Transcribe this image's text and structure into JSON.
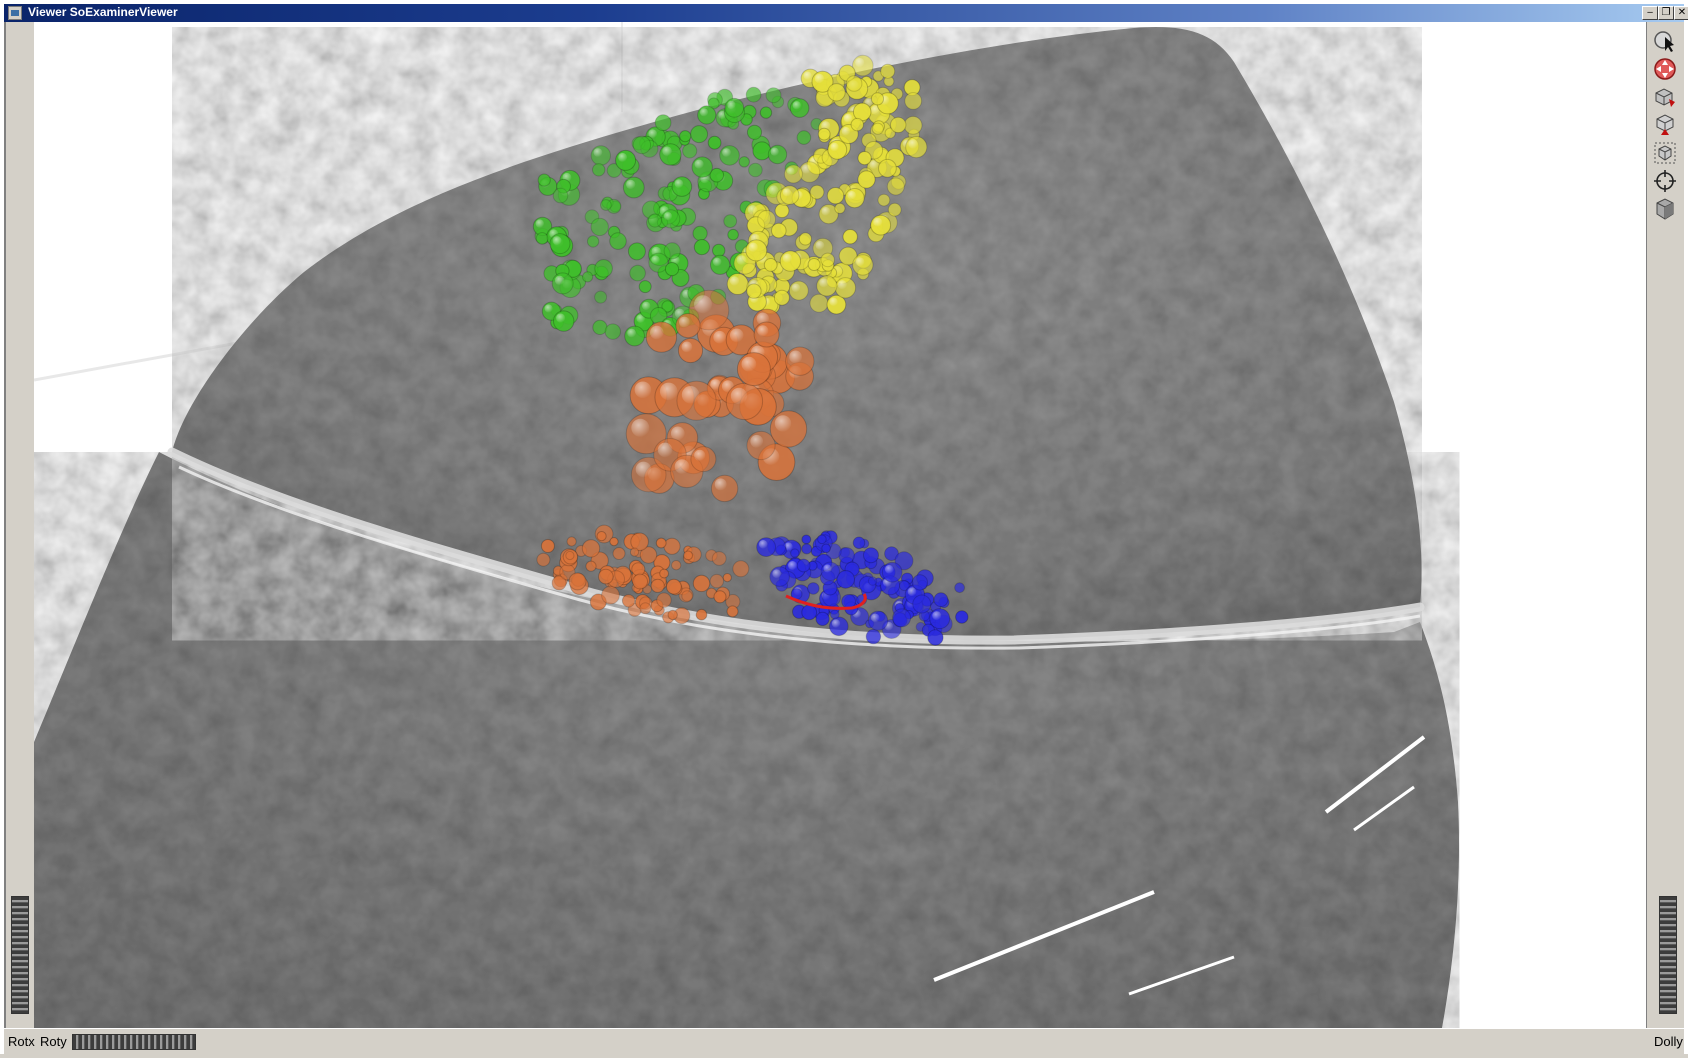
{
  "window": {
    "title": "Viewer SoExaminerViewer",
    "minimize_glyph": "‒",
    "restore_glyph": "❐",
    "close_glyph": "✕"
  },
  "toolbar": {
    "items": [
      {
        "name": "pick-mode-icon"
      },
      {
        "name": "view-mode-icon"
      },
      {
        "name": "home-icon"
      },
      {
        "name": "set-home-icon"
      },
      {
        "name": "view-all-icon"
      },
      {
        "name": "seek-icon"
      },
      {
        "name": "camera-type-icon"
      }
    ]
  },
  "statusbar": {
    "rotx_label": "Rotx",
    "roty_label": "Roty",
    "dolly_label": "Dolly"
  },
  "colors": {
    "frame": "#d4d0c8",
    "tissue": "#8a8a8a",
    "green_region": "#3fbf2a",
    "yellow_region": "#e6e03a",
    "orange_region": "#d9733a",
    "blue_region": "#2a2ae0",
    "red_path": "#e02020"
  }
}
